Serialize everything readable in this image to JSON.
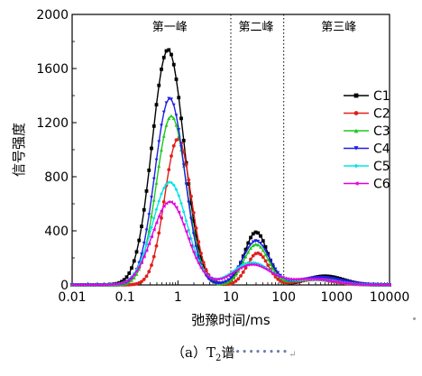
{
  "chart_data": {
    "type": "line",
    "xscale": "log",
    "xlim": [
      0.01,
      10000
    ],
    "ylim": [
      0,
      2000
    ],
    "xticks": [
      "0.01",
      "0.1",
      "1",
      "10",
      "100",
      "1000",
      "10000"
    ],
    "yticks": [
      "0",
      "400",
      "800",
      "1200",
      "1600",
      "2000"
    ],
    "xlabel": "弛豫时间/ms",
    "ylabel": "信号强度",
    "regions": [
      {
        "label": "第一峰",
        "x_end": 10
      },
      {
        "label": "第二峰",
        "x_start": 10,
        "x_end": 100
      },
      {
        "label": "第三峰",
        "x_start": 100
      }
    ],
    "legend_position": "right",
    "series": [
      {
        "name": "C1",
        "color": "#000000",
        "marker": "square",
        "peaks": [
          {
            "center": 0.65,
            "height": 1740,
            "width": 0.3
          },
          {
            "center": 30,
            "height": 390,
            "width": 0.22
          },
          {
            "center": 600,
            "height": 65,
            "width": 0.35
          }
        ]
      },
      {
        "name": "C2",
        "color": "#e0201c",
        "marker": "circle",
        "peaks": [
          {
            "center": 1.0,
            "height": 1080,
            "width": 0.25
          },
          {
            "center": 32,
            "height": 235,
            "width": 0.2
          },
          {
            "center": 400,
            "height": 40,
            "width": 0.35
          }
        ]
      },
      {
        "name": "C3",
        "color": "#1ec81e",
        "marker": "triangle-up",
        "peaks": [
          {
            "center": 0.75,
            "height": 1250,
            "width": 0.28
          },
          {
            "center": 30,
            "height": 300,
            "width": 0.23
          },
          {
            "center": 400,
            "height": 50,
            "width": 0.4
          }
        ]
      },
      {
        "name": "C4",
        "color": "#1f1fe6",
        "marker": "triangle-down",
        "peaks": [
          {
            "center": 0.7,
            "height": 1380,
            "width": 0.28
          },
          {
            "center": 30,
            "height": 325,
            "width": 0.25
          },
          {
            "center": 500,
            "height": 55,
            "width": 0.4
          }
        ]
      },
      {
        "name": "C5",
        "color": "#00e5e5",
        "marker": "diamond",
        "peaks": [
          {
            "center": 0.7,
            "height": 760,
            "width": 0.32
          },
          {
            "center": 25,
            "height": 165,
            "width": 0.35
          },
          {
            "center": 400,
            "height": 40,
            "width": 0.4
          }
        ]
      },
      {
        "name": "C6",
        "color": "#e000e0",
        "marker": "triangle-left",
        "peaks": [
          {
            "center": 0.7,
            "height": 615,
            "width": 0.33
          },
          {
            "center": 25,
            "height": 150,
            "width": 0.35
          },
          {
            "center": 350,
            "height": 45,
            "width": 0.4
          }
        ]
      }
    ]
  },
  "caption": {
    "prefix": "（a）T",
    "sub": "2",
    "suffix": "谱",
    "dots": "••••••••",
    "mark": "↵"
  }
}
